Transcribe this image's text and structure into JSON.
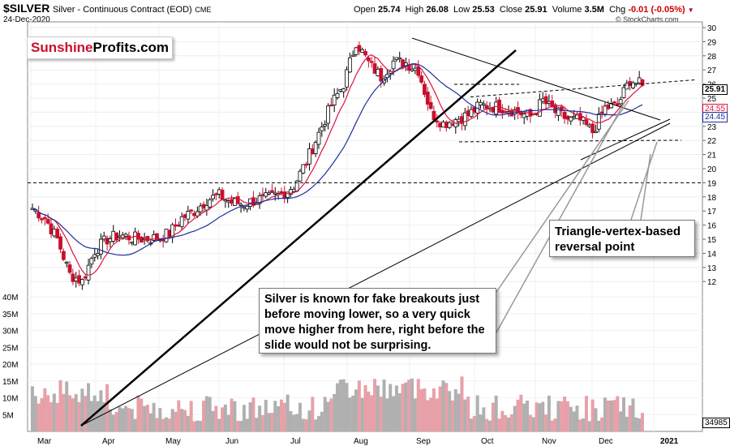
{
  "header": {
    "symbol": "$SILVER",
    "name": "Silver - Continuous Contract (EOD)",
    "exchange": "CME",
    "date": "24-Dec-2020",
    "open_label": "Open",
    "open": "25.74",
    "high_label": "High",
    "high": "26.08",
    "low_label": "Low",
    "low": "25.53",
    "close_label": "Close",
    "close": "25.91",
    "volume_label": "Volume",
    "volume": "3.5M",
    "chg_label": "Chg",
    "chg": "-0.01 (-0.05%)",
    "credit": "© StockCharts.com"
  },
  "logo": {
    "part1": "Sunshine",
    "part2": "Profits.com"
  },
  "annotations": {
    "note1": "Silver is known for fake breakouts just before moving lower, so a very quick move higher from here, right before the slide would not be surprising.",
    "note2": "Triangle-vertex-based reversal point"
  },
  "price_tags": {
    "close": "25.91",
    "ma1": "24.55",
    "ma2": "24.45",
    "volume": "34985"
  },
  "colors": {
    "up": "#ffffff",
    "down": "#c8102e",
    "ma_short": "#dc143c",
    "ma_long": "#1f2f9c",
    "vol_down": "#e8a0a8",
    "vol_up": "#b0b0b0"
  },
  "chart_data": {
    "type": "candlestick",
    "yaxis_ticks": [
      "12",
      "13",
      "14",
      "15",
      "16",
      "17",
      "18",
      "19",
      "20",
      "21",
      "22",
      "23",
      "24",
      "25",
      "26",
      "27",
      "28",
      "29",
      "30"
    ],
    "volume_ticks": [
      "5M",
      "10M",
      "15M",
      "20M",
      "25M",
      "30M",
      "35M",
      "40M"
    ],
    "xaxis_ticks": [
      "Mar",
      "Apr",
      "May",
      "Jun",
      "Jul",
      "Aug",
      "Sep",
      "Oct",
      "Nov",
      "Dec",
      "2021"
    ],
    "horizontal_levels": [
      19.0,
      21.9,
      25.2,
      26.3
    ],
    "monthly_path": [
      {
        "m": "Mar",
        "v": [
          17.2,
          16.5,
          15.0,
          12.5,
          12.0
        ]
      },
      {
        "m": "Apr",
        "v": [
          14.2,
          15.0,
          15.3,
          15.1,
          15.0
        ]
      },
      {
        "m": "May",
        "v": [
          15.1,
          15.4,
          16.5,
          17.0,
          17.8
        ]
      },
      {
        "m": "Jun",
        "v": [
          18.1,
          17.6,
          17.5,
          17.8,
          17.9
        ]
      },
      {
        "m": "Jul",
        "v": [
          18.2,
          18.8,
          20.5,
          22.5,
          24.5
        ]
      },
      {
        "m": "Aug",
        "v": [
          26.0,
          29.0,
          27.5,
          26.5,
          27.6
        ]
      },
      {
        "m": "Sep",
        "v": [
          27.5,
          27.0,
          24.0,
          23.2,
          23.5
        ]
      },
      {
        "m": "Oct",
        "v": [
          23.8,
          24.5,
          24.4,
          24.3,
          24.0
        ]
      },
      {
        "m": "Nov",
        "v": [
          23.7,
          24.8,
          24.0,
          23.5,
          23.4
        ]
      },
      {
        "m": "Dec",
        "v": [
          22.6,
          24.3,
          24.5,
          26.3,
          25.9
        ]
      }
    ]
  }
}
